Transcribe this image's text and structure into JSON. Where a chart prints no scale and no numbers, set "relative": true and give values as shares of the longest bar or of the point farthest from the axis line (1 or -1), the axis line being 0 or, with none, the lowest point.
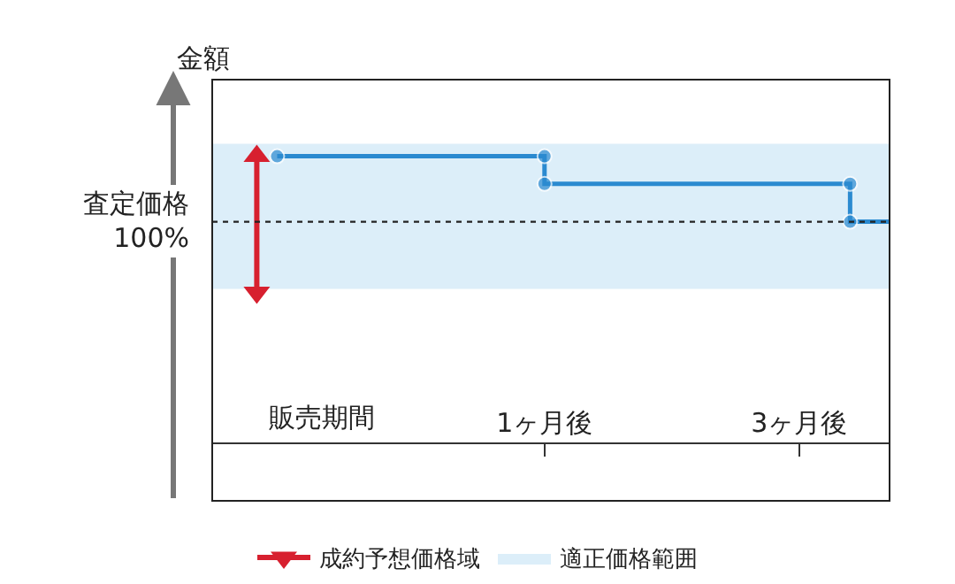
{
  "chart_data": {
    "type": "line",
    "relative": true,
    "ylabel": "金額",
    "xlim": [
      -1.61,
      3.71
    ],
    "xticks": [
      {
        "value": 1,
        "label": "1ヶ月後"
      },
      {
        "value": 3,
        "label": "3ヶ月後"
      }
    ],
    "annotations": [
      "販売期間"
    ],
    "series": [
      {
        "color": "#2b8ad0",
        "x": [
          -1.1,
          1,
          1,
          3.4,
          3.4,
          3.71
        ],
        "values": [
          1,
          1,
          0.92,
          0.92,
          0.81,
          0.81
        ],
        "marker": "circle"
      },
      {
        "name": "成約予想価格域",
        "type": "line",
        "color": "#d7202f",
        "x": [
          -1.26,
          -1.26
        ],
        "values": [
          0.605,
          1.0
        ],
        "marker": "triangle"
      }
    ],
    "ref_lines": [
      {
        "axis": "y",
        "value": 0.81,
        "label": "査定価格\n100%",
        "color": "#222222",
        "line_style": "dotted"
      }
    ],
    "bands": [
      {
        "axis": "y",
        "from": 0.615,
        "to": 1.036,
        "label": "適正価格範囲",
        "color": "#dceef9"
      }
    ],
    "legend": "bottom"
  }
}
